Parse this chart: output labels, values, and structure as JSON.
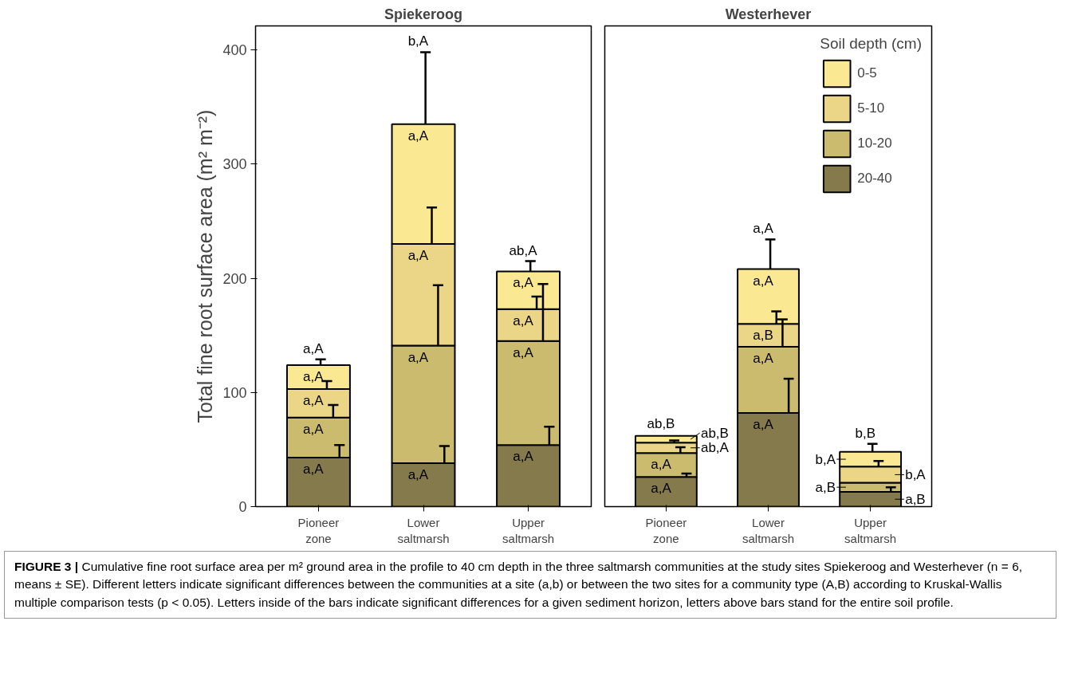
{
  "chart_data": [
    {
      "type": "bar",
      "stacked": true,
      "title": "Spiekeroog",
      "ylabel": "Total fine root surface area (m² m⁻²)",
      "categories": [
        "Pioneer zone",
        "Lower saltmarsh",
        "Upper saltmarsh"
      ],
      "ylim": [
        0,
        421
      ],
      "yticks": [
        0,
        100,
        200,
        300,
        400
      ],
      "series": [
        {
          "color": "#857a4b",
          "values": [
            43,
            38,
            54
          ],
          "errors": [
            [
              43,
              54
            ],
            [
              38,
              53
            ],
            [
              54,
              70
            ]
          ]
        },
        {
          "color": "#cbbb6e",
          "values": [
            35,
            103,
            91
          ],
          "errors": [
            [
              78,
              89
            ],
            [
              141,
              194
            ],
            [
              145,
              195
            ]
          ]
        },
        {
          "color": "#ebd687",
          "values": [
            25,
            89,
            28
          ],
          "errors": [
            [
              103,
              110
            ],
            [
              230,
              262
            ],
            [
              173,
              184
            ]
          ]
        },
        {
          "color": "#fbe892",
          "values": [
            21,
            105,
            33
          ],
          "errors": [
            [
              124,
              129
            ],
            [
              335,
              398
            ],
            [
              206,
              215
            ]
          ]
        }
      ],
      "annotations": [
        {
          "text": "a,A",
          "x": "Pioneer zone",
          "y": 43
        },
        {
          "text": "a,A",
          "x": "Pioneer zone",
          "y": 78
        },
        {
          "text": "a,A",
          "x": "Pioneer zone",
          "y": 103
        },
        {
          "text": "a,A",
          "x": "Pioneer zone",
          "y": 124
        },
        {
          "text": "a,A",
          "x": "Pioneer zone",
          "y": 129
        },
        {
          "text": "a,A",
          "x": "Lower saltmarsh",
          "y": 38
        },
        {
          "text": "a,A",
          "x": "Lower saltmarsh",
          "y": 141
        },
        {
          "text": "a,A",
          "x": "Lower saltmarsh",
          "y": 230
        },
        {
          "text": "a,A",
          "x": "Lower saltmarsh",
          "y": 335
        },
        {
          "text": "b,A",
          "x": "Lower saltmarsh",
          "y": 398
        },
        {
          "text": "a,A",
          "x": "Upper saltmarsh",
          "y": 54
        },
        {
          "text": "a,A",
          "x": "Upper saltmarsh",
          "y": 145
        },
        {
          "text": "a,A",
          "x": "Upper saltmarsh",
          "y": 173
        },
        {
          "text": "a,A",
          "x": "Upper saltmarsh",
          "y": 206
        },
        {
          "text": "ab,A",
          "x": "Upper saltmarsh",
          "y": 215
        }
      ]
    },
    {
      "type": "bar",
      "stacked": true,
      "title": "Westerhever",
      "legend_title": "Soil depth (cm)",
      "categories": [
        "Pioneer zone",
        "Lower saltmarsh",
        "Upper saltmarsh"
      ],
      "ylim": [
        0,
        421
      ],
      "yticks": [
        0,
        100,
        200,
        300,
        400
      ],
      "tick_labels": "x",
      "legend": "top right",
      "series": [
        {
          "name": "20-40",
          "color": "#857a4b",
          "values": [
            26,
            82,
            13
          ],
          "errors": [
            [
              26,
              29
            ],
            [
              82,
              112
            ],
            [
              13,
              17
            ]
          ]
        },
        {
          "name": "10-20",
          "color": "#cbbb6e",
          "values": [
            21,
            58,
            8
          ],
          "errors": [
            [
              47,
              52
            ],
            [
              140,
              164
            ],
            null
          ]
        },
        {
          "name": "5-10",
          "color": "#ebd687",
          "values": [
            9,
            20,
            14
          ],
          "errors": [
            [
              56,
              58
            ],
            [
              160,
              171
            ],
            [
              35,
              40
            ]
          ]
        },
        {
          "name": "0-5",
          "color": "#fbe892",
          "values": [
            6,
            48,
            13
          ],
          "errors": [
            null,
            [
              208,
              234
            ],
            [
              48,
              55
            ]
          ]
        }
      ],
      "annotations": [
        {
          "text": "a,A",
          "x": "Pioneer zone",
          "y": 26
        },
        {
          "text": "a,A",
          "x": "Pioneer zone",
          "y": 47
        },
        {
          "text": "ab,A",
          "x": "Pioneer zone",
          "y": 56
        },
        {
          "text": "ab,B",
          "x": "Pioneer zone",
          "y": 62
        },
        {
          "text": "ab,B",
          "x": "Pioneer zone",
          "y": 63
        },
        {
          "text": "a,A",
          "x": "Lower saltmarsh",
          "y": 82
        },
        {
          "text": "a,A",
          "x": "Lower saltmarsh",
          "y": 140
        },
        {
          "text": "a,B",
          "x": "Lower saltmarsh",
          "y": 160
        },
        {
          "text": "a,A",
          "x": "Lower saltmarsh",
          "y": 208
        },
        {
          "text": "a,A",
          "x": "Lower saltmarsh",
          "y": 234
        },
        {
          "text": "a,B",
          "x": "Upper saltmarsh",
          "y": 13
        },
        {
          "text": "a,B",
          "x": "Upper saltmarsh",
          "y": 21
        },
        {
          "text": "b,A",
          "x": "Upper saltmarsh",
          "y": 35
        },
        {
          "text": "b,A",
          "x": "Upper saltmarsh",
          "y": 48
        },
        {
          "text": "b,B",
          "x": "Upper saltmarsh",
          "y": 55
        },
        "FIGURE 3 | Cumulative fine root surface area per m² ground area in the profile to 40 cm depth in the three saltmarsh communities at the study sites Spiekeroog and Westerhever (n = 6, means ± SE). Different letters indicate significant differences between the communities at a site (a,b) or between the two sites for a community type (A,B) according to Kruskal-Wallis multiple comparison tests (p < 0.05). Letters inside of the bars indicate significant differences for a given sediment horizon, letters above bars stand for the entire soil profile."
      ]
    }
  ]
}
